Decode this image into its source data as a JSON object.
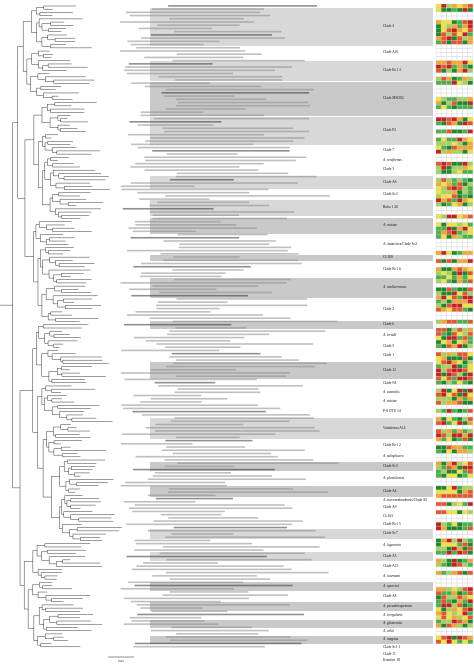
{
  "figure": {
    "scale_label": "0.05",
    "clades": [
      {
        "label": "Clade 4"
      },
      {
        "label": "Clade A16"
      },
      {
        "label": "Clade Bc1 4"
      },
      {
        "label": "Clade MSO02"
      },
      {
        "label": "Clade P2"
      },
      {
        "label": "Clade 7"
      },
      {
        "label": "A. reniformis",
        "italic": true
      },
      {
        "label": "Clade 3"
      },
      {
        "label": "Clade A6"
      },
      {
        "label": "Clade Sc2"
      },
      {
        "label": "Rubo 1 26"
      },
      {
        "label": "A. ruiziae",
        "italic": true
      },
      {
        "label": "A. antarctica/Clade Sc2"
      },
      {
        "label": "CL100"
      },
      {
        "label": "Clade Bc1 6"
      },
      {
        "label": "A. mediterranea",
        "italic": true
      },
      {
        "label": "Clade 2"
      },
      {
        "label": "Clade 6"
      },
      {
        "label": "A. irradii",
        "italic": true
      },
      {
        "label": "Clade 5"
      },
      {
        "label": "Clade 1"
      },
      {
        "label": "Clade 12"
      },
      {
        "label": "Clade N1"
      },
      {
        "label": "A. australis",
        "italic": true
      },
      {
        "label": "A. ruiziae",
        "italic": true
      },
      {
        "label": "P-8 OTU 14"
      },
      {
        "label": "Vandaveza A14"
      },
      {
        "label": "Clade Bc1 2"
      },
      {
        "label": "A. subsphaera",
        "italic": true
      },
      {
        "label": "Clade Sc3"
      },
      {
        "label": "A. pluvialensis",
        "italic": true
      },
      {
        "label": "Clade A4"
      },
      {
        "label": "A. novozealandensis/Clade A5"
      },
      {
        "label": "Clade A9"
      },
      {
        "label": "CL163"
      },
      {
        "label": "Clade Bc1 5"
      },
      {
        "label": "Clade Sc7"
      },
      {
        "label": "A. lagenaria",
        "italic": true
      },
      {
        "label": "Clade A3"
      },
      {
        "label": "Clade A13"
      },
      {
        "label": "A. tourmani",
        "italic": true
      },
      {
        "label": "A. quercini",
        "italic": true
      },
      {
        "label": "Clade A8"
      },
      {
        "label": "A. pseudotrapeziata",
        "italic": true
      },
      {
        "label": "A. irregularis",
        "italic": true
      },
      {
        "label": "A. glomerata",
        "italic": true
      },
      {
        "label": "A. arkii",
        "italic": true
      },
      {
        "label": "A. magnus",
        "italic": true
      },
      {
        "label": "Clade Sc1 1"
      },
      {
        "label": "Clade 11"
      },
      {
        "label": "Komfort 18"
      }
    ],
    "heatmap_colors": [
      "#1a8a2a",
      "#49b24a",
      "#a6d15a",
      "#f2e23c",
      "#f7a52c",
      "#e8542b",
      "#c91f1f",
      "#ffffff"
    ]
  }
}
